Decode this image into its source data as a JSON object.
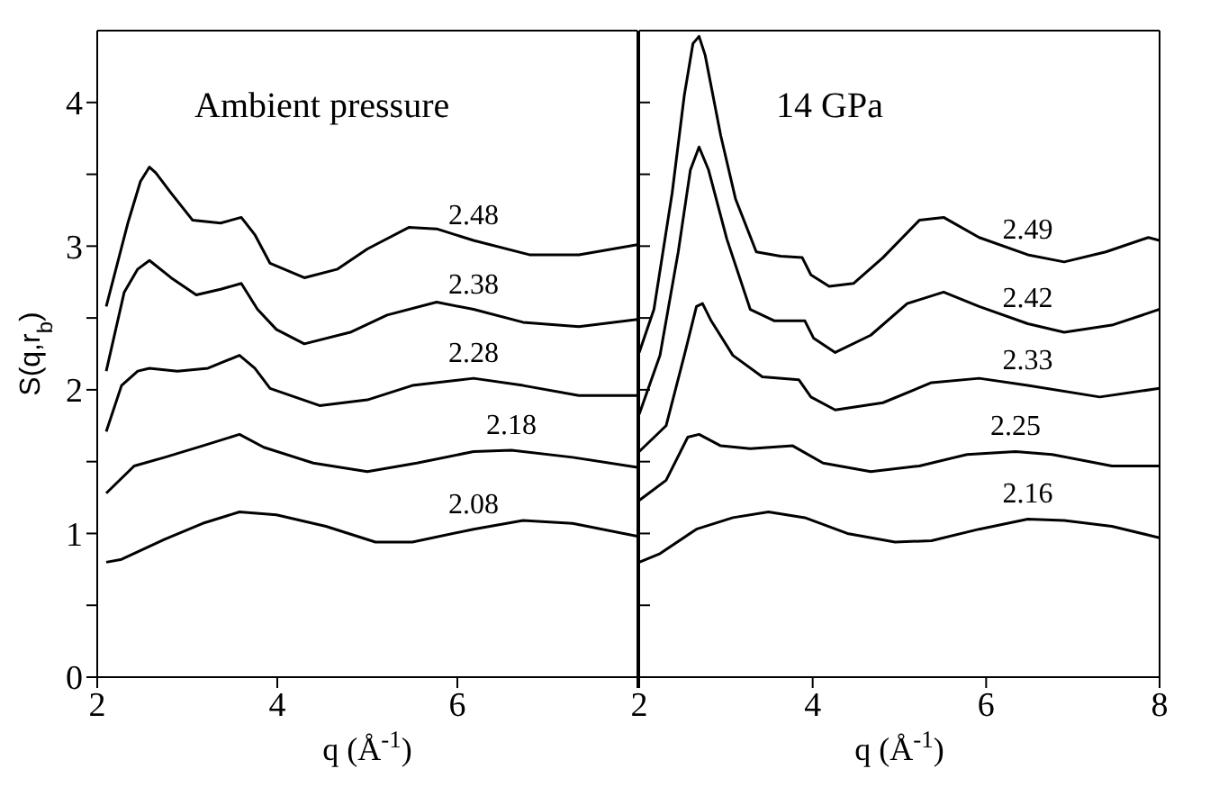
{
  "chart_data": [
    {
      "type": "line",
      "annotations": [
        "Ambient pressure"
      ],
      "xlabel": "q (Å$^{-1}$)",
      "ylabel": "S(q,r$_{b}$)",
      "xlim": [
        2,
        8
      ],
      "xticks": [
        2,
        4,
        6,
        {
          "value": 8,
          "label": null
        }
      ],
      "ylim": [
        0,
        4.5
      ],
      "yticks": [
        0,
        {
          "value": 0.5,
          "label": null
        },
        1,
        {
          "value": 1.5,
          "label": null
        },
        2,
        {
          "value": 2.5,
          "label": null
        },
        3,
        {
          "value": 3.5,
          "label": null
        },
        4
      ],
      "marker": "none",
      "line_style": "solid",
      "series": [
        {
          "name": "2.48",
          "color": "#000000",
          "x": [
            2.1,
            2.34,
            2.48,
            2.58,
            2.65,
            2.82,
            3.06,
            3.37,
            3.6,
            3.75,
            3.92,
            4.3,
            4.67,
            5.0,
            5.46,
            5.77,
            6.18,
            6.8,
            7.35,
            8.0
          ],
          "values": [
            2.58,
            3.16,
            3.45,
            3.55,
            3.51,
            3.37,
            3.18,
            3.16,
            3.2,
            3.08,
            2.88,
            2.78,
            2.84,
            2.98,
            3.13,
            3.12,
            3.04,
            2.94,
            2.94,
            3.01
          ]
        },
        {
          "name": "2.38",
          "color": "#000000",
          "x": [
            2.1,
            2.3,
            2.45,
            2.58,
            2.82,
            3.1,
            3.37,
            3.6,
            3.78,
            3.99,
            4.3,
            4.81,
            5.22,
            5.77,
            6.18,
            6.73,
            7.35,
            8.0
          ],
          "values": [
            2.13,
            2.68,
            2.84,
            2.9,
            2.78,
            2.66,
            2.7,
            2.74,
            2.56,
            2.42,
            2.32,
            2.4,
            2.52,
            2.61,
            2.56,
            2.47,
            2.44,
            2.49
          ]
        },
        {
          "name": "2.28",
          "color": "#000000",
          "x": [
            2.1,
            2.27,
            2.45,
            2.58,
            2.89,
            3.23,
            3.58,
            3.75,
            3.92,
            4.47,
            5.0,
            5.5,
            6.18,
            6.73,
            7.35,
            8.0
          ],
          "values": [
            1.71,
            2.03,
            2.13,
            2.15,
            2.13,
            2.15,
            2.24,
            2.15,
            2.01,
            1.89,
            1.93,
            2.03,
            2.08,
            2.03,
            1.96,
            1.96
          ]
        },
        {
          "name": "2.18",
          "color": "#000000",
          "x": [
            2.1,
            2.41,
            2.75,
            3.17,
            3.58,
            3.85,
            4.4,
            5.0,
            5.55,
            6.18,
            6.6,
            7.28,
            8.0
          ],
          "values": [
            1.28,
            1.47,
            1.53,
            1.61,
            1.69,
            1.6,
            1.49,
            1.43,
            1.49,
            1.57,
            1.58,
            1.53,
            1.46
          ]
        },
        {
          "name": "2.08",
          "color": "#000000",
          "x": [
            2.1,
            2.27,
            2.75,
            3.17,
            3.58,
            3.99,
            4.54,
            5.09,
            5.5,
            6.18,
            6.73,
            7.28,
            8.0
          ],
          "values": [
            0.8,
            0.82,
            0.96,
            1.07,
            1.15,
            1.13,
            1.05,
            0.94,
            0.94,
            1.03,
            1.09,
            1.07,
            0.98
          ]
        }
      ]
    },
    {
      "type": "line",
      "annotations": [
        "14 GPa"
      ],
      "xlabel": "q (Å$^{-1}$)",
      "xlim": [
        2,
        8
      ],
      "xticks": [
        2,
        4,
        6,
        8
      ],
      "ylim": [
        0,
        4.5
      ],
      "yticks": [
        0,
        {
          "value": 0.5,
          "label": null
        },
        1,
        {
          "value": 1.5,
          "label": null
        },
        2,
        {
          "value": 2.5,
          "label": null
        },
        3,
        {
          "value": 3.5,
          "label": null
        },
        4
      ],
      "tick_labels": "x",
      "marker": "none",
      "line_style": "solid",
      "series": [
        {
          "name": "2.49",
          "color": "#000000",
          "x": [
            2.0,
            2.17,
            2.38,
            2.52,
            2.62,
            2.69,
            2.76,
            2.94,
            3.11,
            3.35,
            3.63,
            3.88,
            3.98,
            4.19,
            4.47,
            4.81,
            5.23,
            5.51,
            5.92,
            6.48,
            6.9,
            7.38,
            7.87,
            8.0
          ],
          "values": [
            2.26,
            2.56,
            3.37,
            4.05,
            4.41,
            4.46,
            4.33,
            3.77,
            3.33,
            2.96,
            2.93,
            2.92,
            2.8,
            2.72,
            2.74,
            2.92,
            3.18,
            3.2,
            3.06,
            2.94,
            2.89,
            2.96,
            3.06,
            3.04
          ]
        },
        {
          "name": "2.42",
          "color": "#000000",
          "x": [
            2.0,
            2.24,
            2.45,
            2.59,
            2.69,
            2.8,
            3.01,
            3.28,
            3.56,
            3.91,
            4.01,
            4.26,
            4.67,
            5.09,
            5.51,
            5.92,
            6.48,
            6.9,
            7.45,
            8.0
          ],
          "values": [
            1.83,
            2.24,
            2.96,
            3.53,
            3.69,
            3.53,
            3.05,
            2.56,
            2.48,
            2.48,
            2.36,
            2.26,
            2.38,
            2.6,
            2.68,
            2.58,
            2.46,
            2.4,
            2.45,
            2.56
          ]
        },
        {
          "name": "2.33",
          "color": "#000000",
          "x": [
            2.0,
            2.31,
            2.52,
            2.66,
            2.73,
            2.83,
            3.08,
            3.42,
            3.84,
            3.98,
            4.26,
            4.81,
            5.37,
            5.92,
            6.48,
            7.31,
            8.0
          ],
          "values": [
            1.57,
            1.75,
            2.24,
            2.58,
            2.6,
            2.48,
            2.24,
            2.09,
            2.07,
            1.95,
            1.86,
            1.91,
            2.05,
            2.08,
            2.03,
            1.95,
            2.01
          ]
        },
        {
          "name": "2.25",
          "color": "#000000",
          "x": [
            2.0,
            2.31,
            2.56,
            2.69,
            2.94,
            3.28,
            3.77,
            4.12,
            4.67,
            5.23,
            5.78,
            6.34,
            6.76,
            7.45,
            8.0
          ],
          "values": [
            1.23,
            1.37,
            1.67,
            1.69,
            1.61,
            1.59,
            1.61,
            1.49,
            1.43,
            1.47,
            1.55,
            1.57,
            1.55,
            1.47,
            1.47
          ]
        },
        {
          "name": "2.16",
          "color": "#000000",
          "x": [
            2.0,
            2.24,
            2.66,
            3.08,
            3.49,
            3.91,
            4.4,
            4.95,
            5.37,
            5.92,
            6.48,
            6.9,
            7.45,
            8.0
          ],
          "values": [
            0.8,
            0.86,
            1.03,
            1.11,
            1.15,
            1.11,
            1.0,
            0.94,
            0.95,
            1.03,
            1.1,
            1.09,
            1.05,
            0.97
          ]
        }
      ]
    }
  ]
}
